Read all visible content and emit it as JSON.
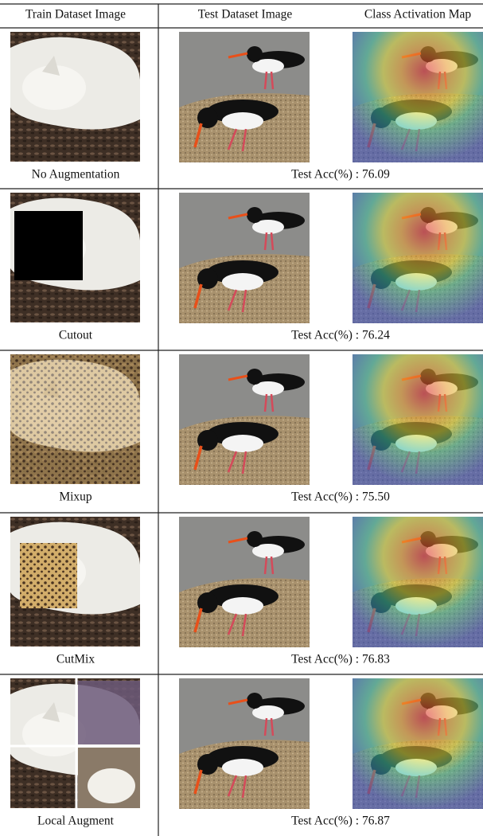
{
  "header": {
    "columns": [
      "Train Dataset Image",
      "Test Dataset Image",
      "Class Activation Map"
    ]
  },
  "rows": [
    {
      "method": "No Augmentation",
      "result": "Test Acc(%) : 76.09"
    },
    {
      "method": "Cutout",
      "result": "Test Acc(%) : 76.24"
    },
    {
      "method": "Mixup",
      "result": "Test Acc(%) : 75.50"
    },
    {
      "method": "CutMix",
      "result": "Test Acc(%) : 76.83"
    },
    {
      "method": "Local Augment",
      "result": "Test Acc(%) : 76.87"
    }
  ]
}
